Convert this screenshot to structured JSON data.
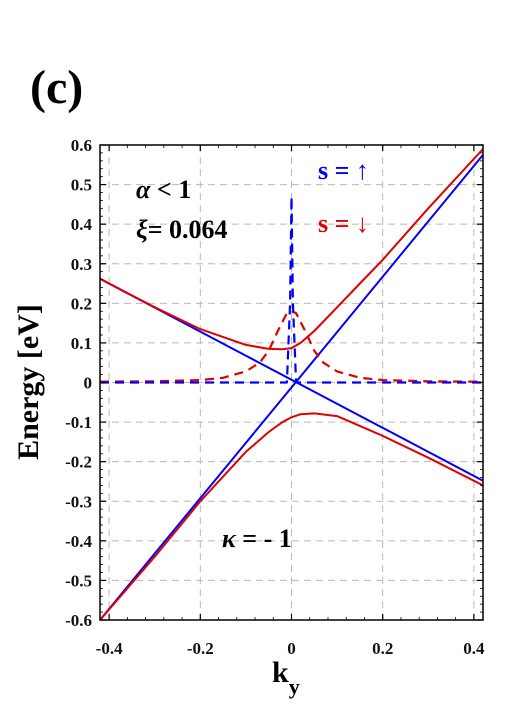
{
  "panel_label": "(c)",
  "chart_data": {
    "type": "line",
    "xlabel": "k",
    "xlabel_sub": "y",
    "ylabel": "Energy [eV]",
    "xlim": [
      -0.42,
      0.42
    ],
    "ylim": [
      -0.6,
      0.6
    ],
    "xticks": [
      -0.4,
      -0.2,
      0,
      0.2,
      0.4
    ],
    "xtick_labels": [
      "-0.4",
      "-0.2",
      "0",
      "0.2",
      "0.4"
    ],
    "yticks": [
      0.6,
      0.5,
      0.4,
      0.3,
      0.2,
      0.1,
      0,
      -0.1,
      -0.2,
      -0.3,
      -0.4,
      -0.5,
      -0.6
    ],
    "ytick_labels": [
      "0.6",
      "0.5",
      "0.4",
      "0.3",
      "0.2",
      "0.1",
      "0",
      "-0.1",
      "-0.2",
      "-0.3",
      "-0.4",
      "-0.5",
      "-0.6"
    ],
    "grid": true,
    "annotations": {
      "alpha_sym": "α",
      "alpha_rest": " < 1",
      "xi_sym": "ξ",
      "xi_rest": "= 0.064",
      "spin_up": "s = ↑",
      "spin_down": "s = ↓",
      "kappa_sym": "κ",
      "kappa_rest": " = - 1"
    },
    "series": [
      {
        "color": "#0000ff",
        "style": "solid",
        "x": [
          -0.42,
          0.42
        ],
        "y": [
          0.262,
          -0.248
        ]
      },
      {
        "color": "#0000ff",
        "style": "solid",
        "x": [
          -0.42,
          0.42
        ],
        "y": [
          -0.6,
          0.575
        ]
      },
      {
        "color": "#e00000",
        "style": "solid",
        "x": [
          -0.42,
          -0.3,
          -0.2,
          -0.1,
          -0.05,
          -0.02,
          0.0,
          0.02,
          0.05,
          0.1,
          0.15,
          0.2,
          0.3,
          0.42
        ],
        "y": [
          0.262,
          0.19,
          0.135,
          0.095,
          0.085,
          0.084,
          0.087,
          0.1,
          0.13,
          0.19,
          0.25,
          0.31,
          0.44,
          0.59
        ]
      },
      {
        "color": "#e00000",
        "style": "solid",
        "x": [
          -0.42,
          -0.3,
          -0.2,
          -0.1,
          -0.05,
          -0.02,
          0.0,
          0.02,
          0.05,
          0.1,
          0.2,
          0.3,
          0.42
        ],
        "y": [
          -0.6,
          -0.44,
          -0.3,
          -0.175,
          -0.125,
          -0.1,
          -0.088,
          -0.08,
          -0.078,
          -0.085,
          -0.135,
          -0.19,
          -0.26
        ]
      },
      {
        "color": "#e00000",
        "style": "dashed",
        "x": [
          -0.42,
          -0.3,
          -0.2,
          -0.15,
          -0.1,
          -0.07,
          -0.05,
          -0.03,
          -0.01,
          0.0,
          0.01,
          0.03,
          0.05,
          0.07,
          0.1,
          0.15,
          0.2,
          0.3,
          0.42
        ],
        "y": [
          0.002,
          0.003,
          0.006,
          0.012,
          0.028,
          0.05,
          0.08,
          0.13,
          0.175,
          0.18,
          0.175,
          0.13,
          0.08,
          0.05,
          0.028,
          0.012,
          0.006,
          0.003,
          0.002
        ]
      },
      {
        "color": "#0000ff",
        "style": "dashed",
        "x": [
          -0.42,
          -0.01,
          -0.003,
          0.0,
          0.003,
          0.01,
          0.42
        ],
        "y": [
          0.0,
          0.0,
          0.2,
          0.47,
          0.2,
          0.0,
          0.0
        ]
      }
    ]
  }
}
